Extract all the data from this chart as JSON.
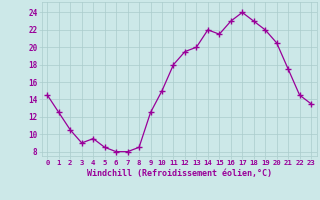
{
  "x": [
    0,
    1,
    2,
    3,
    4,
    5,
    6,
    7,
    8,
    9,
    10,
    11,
    12,
    13,
    14,
    15,
    16,
    17,
    18,
    19,
    20,
    21,
    22,
    23
  ],
  "y": [
    14.5,
    12.5,
    10.5,
    9.0,
    9.5,
    8.5,
    8.0,
    8.0,
    8.5,
    12.5,
    15.0,
    18.0,
    19.5,
    20.0,
    22.0,
    21.5,
    23.0,
    24.0,
    23.0,
    22.0,
    20.5,
    17.5,
    14.5,
    13.5
  ],
  "line_color": "#990099",
  "marker": "D",
  "marker_size": 2,
  "bg_color": "#cce8e8",
  "grid_color": "#aacccc",
  "xlabel": "Windchill (Refroidissement éolien,°C)",
  "xlabel_color": "#990099",
  "tick_color": "#990099",
  "ytick_labels": [
    "8",
    "10",
    "12",
    "14",
    "16",
    "18",
    "20",
    "22",
    "24"
  ],
  "ytick_vals": [
    8,
    10,
    12,
    14,
    16,
    18,
    20,
    22,
    24
  ],
  "xlim": [
    -0.5,
    23.5
  ],
  "ylim": [
    7.5,
    25.2
  ]
}
